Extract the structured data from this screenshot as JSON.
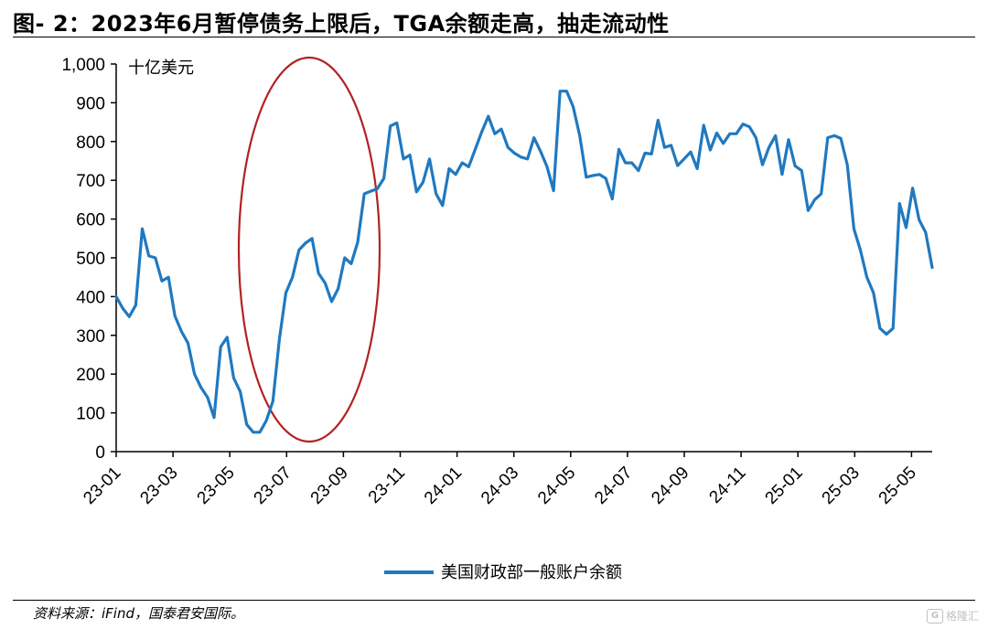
{
  "header": {
    "title": "图- 2：2023年6月暂停债务上限后，TGA余额走高，抽走流动性"
  },
  "footer": {
    "source": "资料来源：iFind，国泰君安国际。"
  },
  "watermark": {
    "mark": "G",
    "text": "格隆汇"
  },
  "chart_data": {
    "type": "line",
    "y_unit_label": "十亿美元",
    "ylim": [
      0,
      1000
    ],
    "y_ticks": [
      0,
      100,
      200,
      300,
      400,
      500,
      600,
      700,
      800,
      900,
      1000
    ],
    "y_tick_labels": [
      "0",
      "100",
      "200",
      "300",
      "400",
      "500",
      "600",
      "700",
      "800",
      "900",
      "1,000"
    ],
    "x_tick_labels": [
      "23-01",
      "23-03",
      "23-05",
      "23-07",
      "23-09",
      "23-11",
      "24-01",
      "24-03",
      "24-05",
      "24-07",
      "24-09",
      "24-11",
      "25-01",
      "25-03",
      "25-05"
    ],
    "grid": false,
    "legend_position": "bottom-center",
    "series_color": "#2079C0",
    "highlight_color": "#B22222",
    "series": [
      {
        "name": "美国财政部一般账户余额",
        "values": [
          400,
          370,
          348,
          378,
          575,
          505,
          500,
          440,
          450,
          350,
          310,
          280,
          200,
          165,
          140,
          88,
          270,
          295,
          190,
          155,
          70,
          50,
          50,
          80,
          130,
          290,
          410,
          450,
          520,
          538,
          550,
          460,
          435,
          387,
          420,
          500,
          485,
          540,
          665,
          672,
          678,
          705,
          840,
          848,
          755,
          765,
          670,
          695,
          755,
          665,
          635,
          730,
          715,
          745,
          735,
          780,
          825,
          865,
          820,
          832,
          785,
          770,
          760,
          755,
          810,
          775,
          735,
          673,
          930,
          930,
          890,
          815,
          708,
          712,
          715,
          705,
          652,
          780,
          745,
          745,
          725,
          770,
          768,
          855,
          785,
          790,
          738,
          755,
          773,
          730,
          842,
          778,
          822,
          795,
          820,
          820,
          845,
          838,
          810,
          740,
          785,
          815,
          715,
          805,
          737,
          725,
          622,
          650,
          665,
          810,
          815,
          808,
          740,
          575,
          520,
          450,
          410,
          318,
          303,
          318,
          640,
          578,
          680,
          598,
          565,
          475
        ]
      }
    ]
  }
}
